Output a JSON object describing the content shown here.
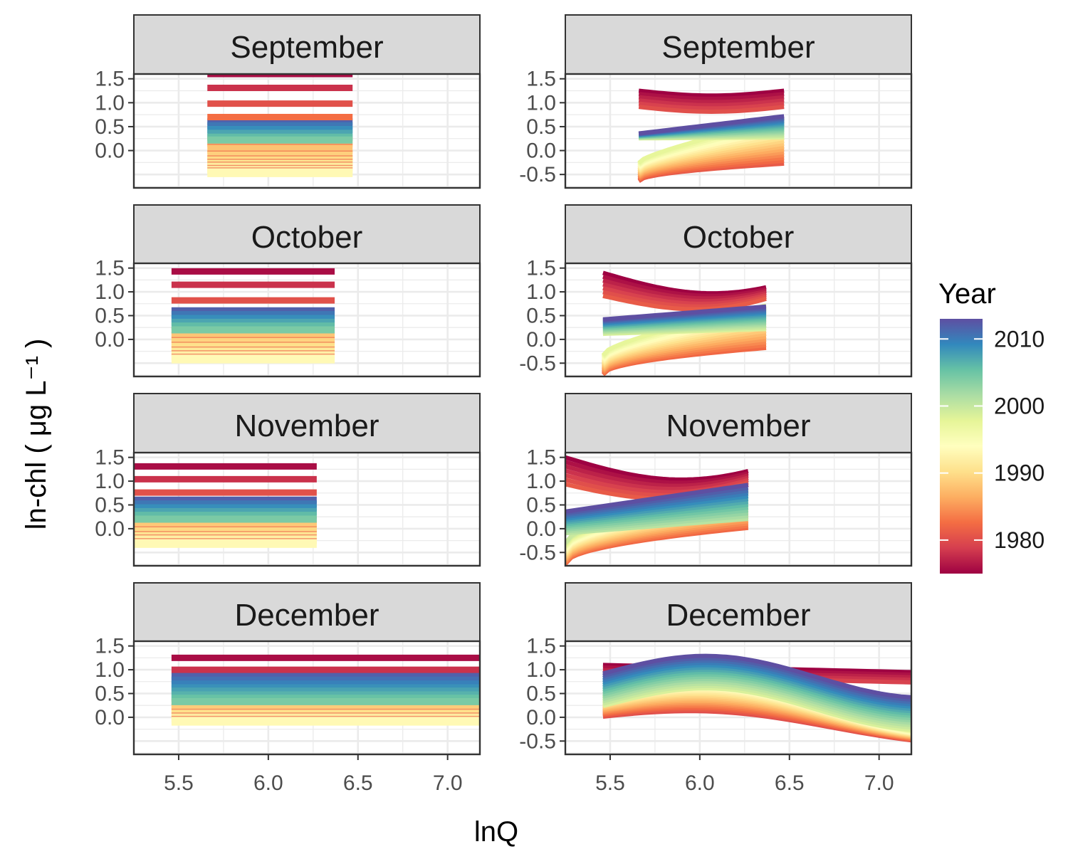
{
  "chart_data": {
    "type": "line",
    "xlabel": "lnQ",
    "ylabel": "ln-chl ( μg L⁻¹ )",
    "x_ticks": [
      "5.5",
      "6.0",
      "6.5",
      "7.0"
    ],
    "y_ticks": [
      "-0.5",
      "0.0",
      "0.5",
      "1.0",
      "1.5"
    ],
    "xlim": [
      5.25,
      7.18
    ],
    "ylim": [
      -0.78,
      1.6
    ],
    "grid": true,
    "legend": {
      "title": "Year",
      "position": "right",
      "labels": [
        "2010",
        "2000",
        "1990",
        "1980"
      ],
      "range": [
        1975,
        2013
      ],
      "colors": [
        "#9e0142",
        "#d53e4f",
        "#f46d43",
        "#fdae61",
        "#fee08b",
        "#ffffbf",
        "#e6f598",
        "#abdda4",
        "#66c2a5",
        "#3288bd",
        "#5e4fa2"
      ]
    },
    "panels": [
      {
        "strip": "September",
        "column": "left",
        "xrange": [
          5.66,
          6.47
        ],
        "ys": [
          0.18,
          0.04,
          -0.1,
          -0.2,
          -0.27,
          -0.33,
          -0.4,
          -0.45
        ],
        "red": [
          1.6,
          1.31,
          0.98,
          0.7
        ],
        "blue": [
          0.6,
          0.52,
          0.44,
          0.36,
          0.28,
          0.22
        ],
        "y_tick_min": "0.0"
      },
      {
        "strip": "October",
        "column": "left",
        "xrange": [
          5.46,
          6.37
        ],
        "ys": [
          0.16,
          0.05,
          -0.05,
          -0.15,
          -0.25,
          -0.33,
          -0.4
        ],
        "red": [
          1.43,
          1.15,
          0.82
        ],
        "blue": [
          0.6,
          0.52,
          0.44,
          0.36,
          0.28,
          0.2
        ],
        "y_tick_min": "0.0"
      },
      {
        "strip": "November",
        "column": "left",
        "xrange": [
          5.25,
          6.27
        ],
        "ys": [
          0.15,
          0.05,
          -0.05,
          -0.15,
          -0.22,
          -0.3
        ],
        "red": [
          1.31,
          1.04,
          0.76
        ],
        "blue": [
          0.6,
          0.52,
          0.44,
          0.36,
          0.28,
          0.2
        ],
        "y_tick_min": "0.0"
      },
      {
        "strip": "December",
        "column": "left",
        "xrange": [
          5.46,
          7.18
        ],
        "ys": [
          0.28,
          0.18,
          0.08,
          0.0,
          -0.07
        ],
        "red": [
          1.25,
          1.0
        ],
        "blue": [
          0.86,
          0.78,
          0.7,
          0.62,
          0.55,
          0.47,
          0.4,
          0.33
        ],
        "y_tick_min": "0.0"
      },
      {
        "strip": "September",
        "column": "right",
        "xrange": [
          5.66,
          6.47
        ],
        "y_tick_min": "-0.5"
      },
      {
        "strip": "October",
        "column": "right",
        "xrange": [
          5.46,
          6.37
        ],
        "y_tick_min": "-0.5"
      },
      {
        "strip": "November",
        "column": "right",
        "xrange": [
          5.25,
          6.27
        ],
        "y_tick_min": "-0.5"
      },
      {
        "strip": "December",
        "column": "right",
        "xrange": [
          5.46,
          7.18
        ],
        "y_tick_min": "-0.5"
      }
    ]
  }
}
